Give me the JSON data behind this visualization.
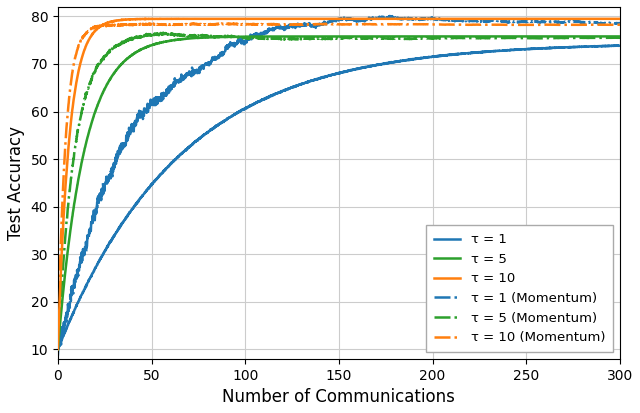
{
  "title": "",
  "xlabel": "Number of Communications",
  "ylabel": "Test Accuracy",
  "xlim": [
    0,
    300
  ],
  "ylim": [
    8,
    82
  ],
  "yticks": [
    10,
    20,
    30,
    40,
    50,
    60,
    70,
    80
  ],
  "xticks": [
    0,
    50,
    100,
    150,
    200,
    250,
    300
  ],
  "colors": {
    "blue": "#1f77b4",
    "green": "#2ca02c",
    "orange": "#ff7f0e"
  },
  "legend": [
    "τ = 1",
    "τ = 5",
    "τ = 10",
    "τ = 1 (Momentum)",
    "τ = 5 (Momentum)",
    "τ = 10 (Momentum)"
  ],
  "figsize": [
    6.4,
    4.13
  ],
  "dpi": 100,
  "curve_params": {
    "tau1_solid": {
      "ymin": 10,
      "ymax": 74.5,
      "tau": 65
    },
    "tau5_solid": {
      "ymin": 10,
      "ymax": 75.8,
      "tau": 14
    },
    "tau10_solid": {
      "ymin": 10,
      "ymax": 79.5,
      "tau": 6
    },
    "tau1_mom": {
      "ymin": 10,
      "ymax": 77.5,
      "tau": 35,
      "noise_scale": 2.5
    },
    "tau5_mom": {
      "ymin": 10,
      "ymax": 75.6,
      "tau": 9,
      "noise_scale": 0.6
    },
    "tau10_mom": {
      "ymin": 10,
      "ymax": 78.2,
      "tau": 4,
      "noise_scale": 0.3
    }
  }
}
